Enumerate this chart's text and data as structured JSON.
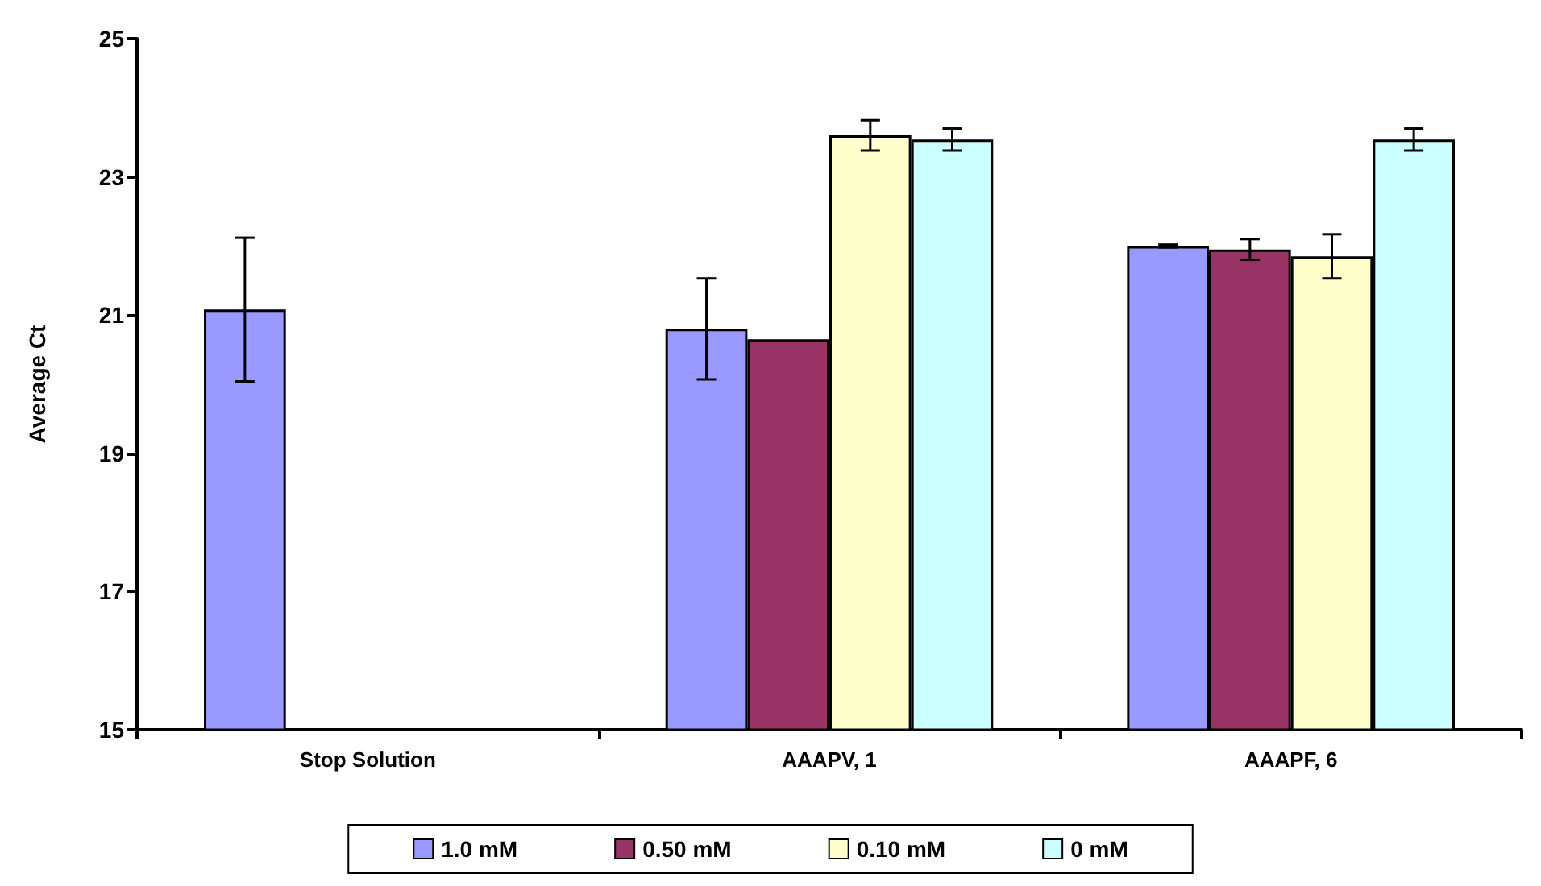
{
  "chart_data": {
    "type": "bar",
    "ylabel": "Average Ct",
    "categories": [
      "Stop Solution",
      "AAAPV, 1",
      "AAAPF, 6"
    ],
    "series": [
      {
        "name": "1.0 mM",
        "color": "#9999ff",
        "values": [
          21.08,
          20.8,
          22.0
        ],
        "errors": [
          1.04,
          0.73,
          0.02
        ]
      },
      {
        "name": "0.50 mM",
        "color": "#993366",
        "values": [
          null,
          20.65,
          21.95
        ],
        "errors": [
          null,
          null,
          0.15
        ]
      },
      {
        "name": "0.10 mM",
        "color": "#ffffcc",
        "values": [
          null,
          23.6,
          21.85
        ],
        "errors": [
          null,
          0.22,
          0.32
        ]
      },
      {
        "name": "0 mM",
        "color": "#ccffff",
        "values": [
          null,
          23.54,
          23.54
        ],
        "errors": [
          null,
          0.16,
          0.16
        ]
      }
    ],
    "ylim": [
      15,
      25
    ],
    "yticks": [
      15,
      17,
      19,
      21,
      23,
      25
    ],
    "grid": false,
    "legend": "bottom"
  }
}
